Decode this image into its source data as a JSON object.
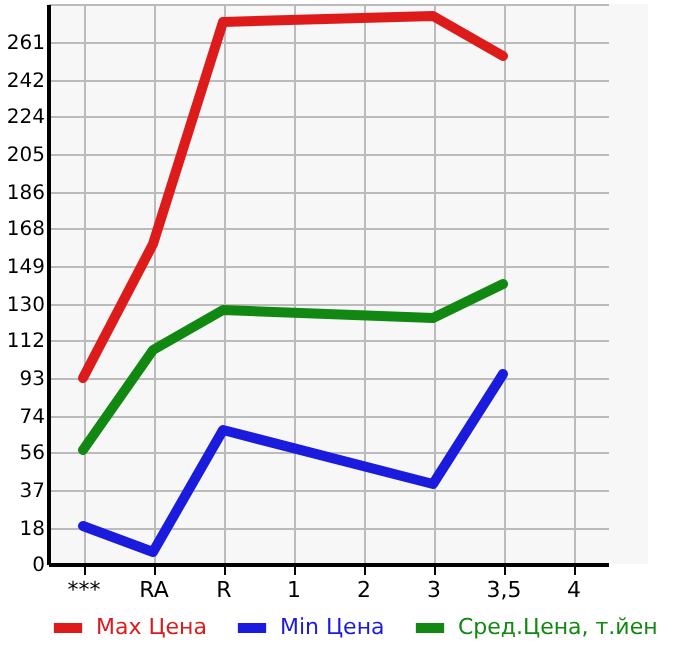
{
  "chart_data": {
    "type": "line",
    "categories": [
      "***",
      "RA",
      "R",
      "1",
      "2",
      "3",
      "3,5",
      "4"
    ],
    "series": [
      {
        "name": "Max Цена",
        "color": "#dd1b1b",
        "values": [
          93,
          160,
          271,
          null,
          null,
          274,
          254,
          null
        ]
      },
      {
        "name": "Min Цена",
        "color": "#1b1bdd",
        "values": [
          19,
          6,
          67,
          null,
          null,
          40,
          95,
          null
        ]
      },
      {
        "name": "Сред.Цена, т.йен",
        "color": "#118811",
        "values": [
          57,
          107,
          127,
          null,
          null,
          123,
          140,
          null
        ]
      }
    ],
    "ylim": [
      0,
      280
    ],
    "yticks": [
      0,
      18,
      37,
      56,
      74,
      93,
      112,
      130,
      149,
      168,
      186,
      205,
      224,
      242,
      261,
      {
        "value": 280,
        "label": null
      }
    ],
    "grid": true,
    "legend": "bottom",
    "marker": "none",
    "line_style": "solid"
  }
}
